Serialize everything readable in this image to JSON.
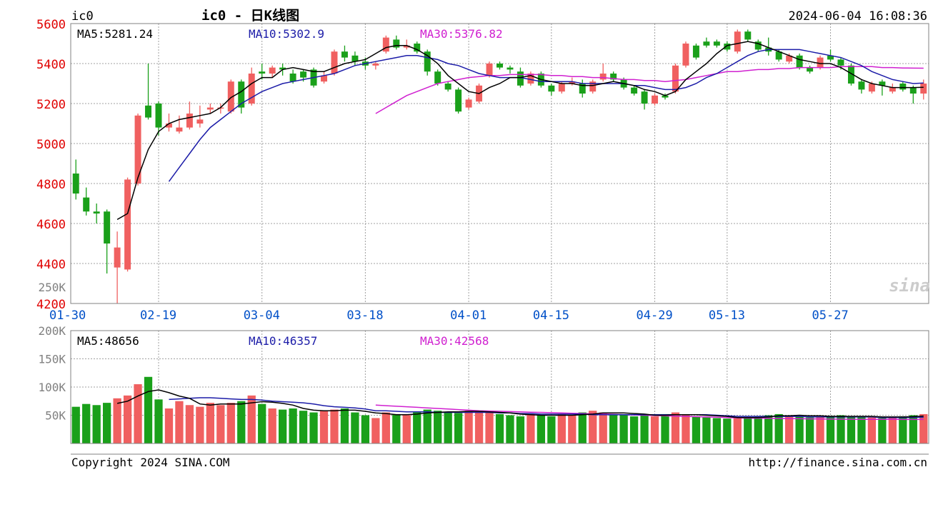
{
  "header": {
    "symbol": "ic0",
    "title": "ic0 - 日K线图",
    "datetime": "2024-06-04 16:08:36"
  },
  "footer": {
    "copyright": "Copyright 2024 SINA.COM",
    "url": "http://finance.sina.com.cn"
  },
  "watermark": "sina",
  "colors": {
    "up": "#f06060",
    "down": "#1aa01a",
    "ma5": "#000000",
    "ma10": "#1c1ca8",
    "ma30": "#d020d0",
    "price_axis": "#e00000",
    "date_axis": "#0050c8",
    "volume_axis": "#808080",
    "grid": "#a0a0a0"
  },
  "chart_data": [
    {
      "type": "candlestick",
      "legend": {
        "ma5": "MA5:5281.24",
        "ma10": "MA10:5302.9",
        "ma30": "MA30:5376.82"
      },
      "ylim": [
        4200,
        5600
      ],
      "yticks": [
        "5600",
        "5400",
        "5200",
        "5000",
        "4800",
        "4600",
        "4400",
        "4200"
      ],
      "volume_scale_label": "250K",
      "xtick_labels": [
        {
          "label": "01-30",
          "index": 0
        },
        {
          "label": "02-19",
          "index": 8
        },
        {
          "label": "03-04",
          "index": 18
        },
        {
          "label": "03-18",
          "index": 28
        },
        {
          "label": "04-01",
          "index": 38
        },
        {
          "label": "04-15",
          "index": 46
        },
        {
          "label": "04-29",
          "index": 56
        },
        {
          "label": "05-13",
          "index": 63
        },
        {
          "label": "05-27",
          "index": 73
        }
      ],
      "candles": [
        [
          4850,
          4750,
          4920,
          4720
        ],
        [
          4730,
          4660,
          4780,
          4640
        ],
        [
          4660,
          4650,
          4700,
          4600
        ],
        [
          4660,
          4500,
          4670,
          4350
        ],
        [
          4380,
          4480,
          4560,
          4200
        ],
        [
          4370,
          4820,
          4830,
          4360
        ],
        [
          4800,
          5140,
          5150,
          4790
        ],
        [
          5190,
          5130,
          5400,
          5120
        ],
        [
          5200,
          5080,
          5210,
          5040
        ],
        [
          5080,
          5100,
          5150,
          5060
        ],
        [
          5060,
          5080,
          5140,
          5050
        ],
        [
          5080,
          5150,
          5210,
          5070
        ],
        [
          5100,
          5120,
          5190,
          5080
        ],
        [
          5170,
          5180,
          5200,
          5150
        ],
        [
          5180,
          5180,
          5200,
          5150
        ],
        [
          5160,
          5310,
          5320,
          5150
        ],
        [
          5310,
          5180,
          5320,
          5150
        ],
        [
          5200,
          5350,
          5380,
          5190
        ],
        [
          5360,
          5350,
          5400,
          5320
        ],
        [
          5350,
          5380,
          5390,
          5330
        ],
        [
          5380,
          5370,
          5400,
          5340
        ],
        [
          5350,
          5310,
          5370,
          5300
        ],
        [
          5360,
          5330,
          5370,
          5310
        ],
        [
          5370,
          5290,
          5380,
          5280
        ],
        [
          5310,
          5340,
          5360,
          5300
        ],
        [
          5350,
          5460,
          5470,
          5340
        ],
        [
          5460,
          5430,
          5490,
          5410
        ],
        [
          5440,
          5410,
          5460,
          5390
        ],
        [
          5410,
          5390,
          5430,
          5370
        ],
        [
          5390,
          5400,
          5410,
          5370
        ],
        [
          5460,
          5530,
          5540,
          5450
        ],
        [
          5520,
          5480,
          5540,
          5470
        ],
        [
          5480,
          5490,
          5520,
          5470
        ],
        [
          5500,
          5460,
          5510,
          5450
        ],
        [
          5460,
          5360,
          5470,
          5340
        ],
        [
          5360,
          5300,
          5370,
          5290
        ],
        [
          5300,
          5270,
          5310,
          5260
        ],
        [
          5270,
          5160,
          5280,
          5150
        ],
        [
          5180,
          5220,
          5230,
          5170
        ],
        [
          5210,
          5290,
          5300,
          5200
        ],
        [
          5340,
          5400,
          5410,
          5330
        ],
        [
          5400,
          5380,
          5410,
          5370
        ],
        [
          5380,
          5370,
          5390,
          5350
        ],
        [
          5360,
          5290,
          5380,
          5280
        ],
        [
          5300,
          5350,
          5360,
          5290
        ],
        [
          5350,
          5290,
          5360,
          5280
        ],
        [
          5290,
          5260,
          5300,
          5240
        ],
        [
          5260,
          5300,
          5310,
          5250
        ],
        [
          5300,
          5310,
          5330,
          5290
        ],
        [
          5300,
          5250,
          5320,
          5230
        ],
        [
          5260,
          5310,
          5320,
          5250
        ],
        [
          5320,
          5350,
          5400,
          5310
        ],
        [
          5350,
          5320,
          5360,
          5310
        ],
        [
          5320,
          5280,
          5330,
          5270
        ],
        [
          5280,
          5250,
          5290,
          5240
        ],
        [
          5260,
          5200,
          5270,
          5170
        ],
        [
          5200,
          5240,
          5250,
          5190
        ],
        [
          5240,
          5230,
          5250,
          5220
        ],
        [
          5260,
          5390,
          5400,
          5250
        ],
        [
          5390,
          5500,
          5510,
          5380
        ],
        [
          5490,
          5430,
          5500,
          5420
        ],
        [
          5510,
          5490,
          5530,
          5480
        ],
        [
          5510,
          5490,
          5520,
          5480
        ],
        [
          5500,
          5470,
          5510,
          5460
        ],
        [
          5460,
          5560,
          5570,
          5450
        ],
        [
          5560,
          5520,
          5570,
          5510
        ],
        [
          5510,
          5470,
          5520,
          5460
        ],
        [
          5480,
          5460,
          5530,
          5440
        ],
        [
          5460,
          5420,
          5470,
          5410
        ],
        [
          5410,
          5440,
          5450,
          5400
        ],
        [
          5440,
          5380,
          5450,
          5370
        ],
        [
          5380,
          5360,
          5390,
          5350
        ],
        [
          5380,
          5430,
          5440,
          5370
        ],
        [
          5440,
          5420,
          5470,
          5410
        ],
        [
          5420,
          5390,
          5430,
          5370
        ],
        [
          5390,
          5300,
          5400,
          5290
        ],
        [
          5310,
          5270,
          5320,
          5250
        ],
        [
          5260,
          5300,
          5310,
          5250
        ],
        [
          5310,
          5290,
          5320,
          5240
        ],
        [
          5260,
          5280,
          5300,
          5250
        ],
        [
          5300,
          5270,
          5310,
          5260
        ],
        [
          5280,
          5250,
          5290,
          5200
        ],
        [
          5250,
          5300,
          5320,
          5220
        ]
      ],
      "ma5": [
        null,
        null,
        null,
        null,
        4620,
        4650,
        4830,
        4970,
        5060,
        5100,
        5120,
        5130,
        5140,
        5150,
        5180,
        5230,
        5260,
        5300,
        5330,
        5330,
        5370,
        5380,
        5370,
        5360,
        5360,
        5380,
        5400,
        5410,
        5420,
        5450,
        5480,
        5490,
        5490,
        5470,
        5440,
        5400,
        5340,
        5300,
        5260,
        5250,
        5280,
        5300,
        5330,
        5330,
        5340,
        5320,
        5310,
        5300,
        5300,
        5290,
        5290,
        5300,
        5310,
        5300,
        5290,
        5270,
        5260,
        5240,
        5260,
        5320,
        5360,
        5400,
        5450,
        5490,
        5500,
        5510,
        5500,
        5480,
        5460,
        5440,
        5420,
        5410,
        5400,
        5400,
        5380,
        5350,
        5320,
        5300,
        5290,
        5280,
        5280,
        5280,
        5281
      ],
      "ma10": [
        null,
        null,
        null,
        null,
        null,
        null,
        null,
        null,
        null,
        4810,
        4880,
        4950,
        5020,
        5080,
        5120,
        5160,
        5200,
        5230,
        5260,
        5280,
        5300,
        5310,
        5320,
        5330,
        5340,
        5350,
        5370,
        5390,
        5400,
        5410,
        5420,
        5430,
        5440,
        5440,
        5430,
        5420,
        5400,
        5390,
        5370,
        5350,
        5340,
        5330,
        5330,
        5330,
        5320,
        5310,
        5310,
        5310,
        5310,
        5300,
        5300,
        5300,
        5300,
        5300,
        5290,
        5290,
        5280,
        5270,
        5270,
        5280,
        5300,
        5330,
        5350,
        5380,
        5410,
        5440,
        5460,
        5470,
        5470,
        5470,
        5470,
        5460,
        5450,
        5440,
        5430,
        5410,
        5390,
        5360,
        5340,
        5320,
        5310,
        5300,
        5302.9
      ],
      "ma30": [
        null,
        null,
        null,
        null,
        null,
        null,
        null,
        null,
        null,
        null,
        null,
        null,
        null,
        null,
        null,
        null,
        null,
        null,
        null,
        null,
        null,
        null,
        null,
        null,
        null,
        null,
        null,
        null,
        null,
        5150,
        5180,
        5210,
        5240,
        5260,
        5280,
        5300,
        5310,
        5320,
        5330,
        5335,
        5340,
        5340,
        5345,
        5345,
        5345,
        5345,
        5340,
        5340,
        5335,
        5335,
        5330,
        5330,
        5325,
        5320,
        5320,
        5315,
        5315,
        5310,
        5315,
        5320,
        5330,
        5340,
        5350,
        5360,
        5360,
        5365,
        5370,
        5370,
        5375,
        5375,
        5380,
        5380,
        5380,
        5380,
        5385,
        5385,
        5385,
        5385,
        5380,
        5380,
        5378,
        5377,
        5376.82
      ]
    },
    {
      "type": "bar",
      "legend": {
        "ma5": "MA5:48656",
        "ma10": "MA10:46357",
        "ma30": "MA30:42568"
      },
      "ylim": [
        0,
        200000
      ],
      "yticks": [
        "200K",
        "150K",
        "100K",
        "50K"
      ],
      "volumes": [
        65000,
        70000,
        68000,
        72000,
        80000,
        85000,
        105000,
        118000,
        78000,
        62000,
        75000,
        68000,
        65000,
        72000,
        68000,
        72000,
        75000,
        85000,
        70000,
        62000,
        60000,
        62000,
        58000,
        55000,
        58000,
        60000,
        62000,
        55000,
        50000,
        45000,
        55000,
        52000,
        50000,
        55000,
        60000,
        58000,
        56000,
        54000,
        58000,
        57000,
        55000,
        52000,
        50000,
        48000,
        52000,
        50000,
        48000,
        52000,
        50000,
        55000,
        58000,
        55000,
        52000,
        50000,
        48000,
        50000,
        48000,
        52000,
        55000,
        50000,
        48000,
        46000,
        45000,
        44000,
        46000,
        47000,
        48000,
        50000,
        52000,
        50000,
        48000,
        46000,
        47000,
        49000,
        50000,
        48000,
        47000,
        46000,
        45000,
        47000,
        48000,
        50000,
        52000
      ],
      "ma5": [
        null,
        null,
        null,
        null,
        71000,
        75000,
        84000,
        92000,
        95000,
        90000,
        84000,
        80000,
        70000,
        68000,
        70000,
        70000,
        70000,
        72000,
        74000,
        73000,
        71000,
        68000,
        62000,
        59000,
        58000,
        58000,
        59000,
        59000,
        57000,
        54000,
        53000,
        51000,
        51000,
        52000,
        54000,
        55000,
        56000,
        56000,
        57000,
        57000,
        56000,
        55000,
        54000,
        52000,
        51000,
        50000,
        50000,
        50000,
        50000,
        51000,
        52000,
        54000,
        54000,
        54000,
        53000,
        52000,
        50000,
        50000,
        51000,
        51000,
        51000,
        50000,
        49000,
        48000,
        46000,
        46000,
        46000,
        47000,
        49000,
        49000,
        50000,
        49000,
        49000,
        48000,
        48000,
        48000,
        48000,
        48000,
        47000,
        47000,
        47000,
        47500,
        48656
      ],
      "ma10": [
        null,
        null,
        null,
        null,
        null,
        null,
        null,
        null,
        null,
        78000,
        79000,
        80000,
        81000,
        81000,
        80000,
        79000,
        78000,
        78000,
        77000,
        75000,
        74000,
        73000,
        72000,
        70000,
        67000,
        65000,
        64000,
        63000,
        61000,
        58000,
        58000,
        57000,
        56000,
        56000,
        56000,
        55000,
        55000,
        55000,
        55000,
        55000,
        55000,
        54000,
        54000,
        53000,
        53000,
        52000,
        52000,
        52000,
        52000,
        52000,
        51000,
        51000,
        51000,
        51000,
        51000,
        51000,
        51000,
        51000,
        51000,
        51000,
        51000,
        51000,
        50000,
        49000,
        48000,
        48000,
        48000,
        48000,
        48000,
        48000,
        48000,
        47000,
        47000,
        47000,
        47000,
        47000,
        47000,
        47000,
        46000,
        46000,
        46000,
        46200,
        46357
      ],
      "ma30": [
        null,
        null,
        null,
        null,
        null,
        null,
        null,
        null,
        null,
        null,
        null,
        null,
        null,
        null,
        null,
        null,
        null,
        null,
        null,
        null,
        null,
        null,
        null,
        null,
        null,
        null,
        null,
        null,
        null,
        68000,
        67000,
        66000,
        65000,
        64000,
        63000,
        62000,
        61000,
        60000,
        59000,
        58000,
        57500,
        57000,
        56500,
        56000,
        55500,
        55000,
        54500,
        54000,
        53500,
        53000,
        52500,
        52000,
        51500,
        51000,
        50500,
        50000,
        49500,
        49000,
        48500,
        48000,
        47500,
        47000,
        46500,
        46000,
        45500,
        45000,
        44800,
        44500,
        44200,
        44000,
        43800,
        43600,
        43400,
        43200,
        43000,
        42900,
        42800,
        42700,
        42650,
        42600,
        42580,
        42570,
        42568
      ]
    }
  ]
}
